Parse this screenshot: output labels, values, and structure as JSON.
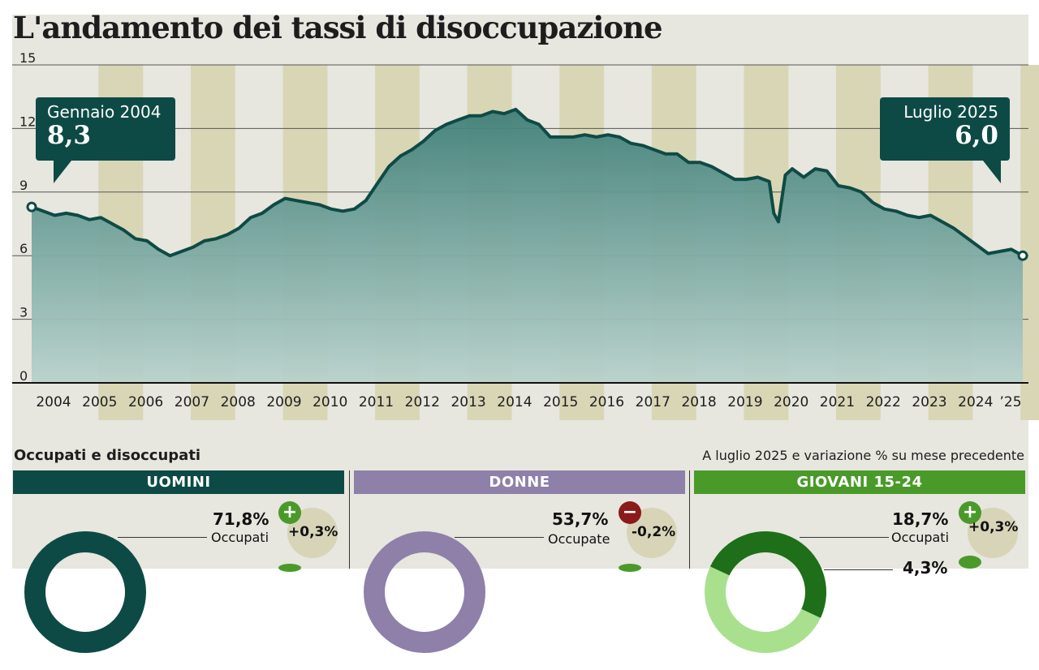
{
  "title": "L'andamento dei tassi di disoccupazione",
  "chart_data": {
    "type": "area",
    "ylim": [
      0,
      15
    ],
    "yticks": [
      "0",
      "3",
      "6",
      "9",
      "12",
      "15"
    ],
    "year_labels": [
      "2004",
      "2005",
      "2006",
      "2007",
      "2008",
      "2009",
      "2010",
      "2011",
      "2012",
      "2013",
      "2014",
      "2015",
      "2016",
      "2017",
      "2018",
      "2019",
      "2020",
      "2021",
      "2022",
      "2023",
      "2024",
      "’25"
    ],
    "grid": true,
    "series": [
      {
        "x": [
          2004.0,
          2004.25,
          2004.5,
          2004.75,
          2005.0,
          2005.25,
          2005.5,
          2005.75,
          2006.0,
          2006.25,
          2006.5,
          2006.75,
          2007.0,
          2007.25,
          2007.5,
          2007.75,
          2008.0,
          2008.25,
          2008.5,
          2008.75,
          2009.0,
          2009.25,
          2009.5,
          2009.75,
          2010.0,
          2010.25,
          2010.5,
          2010.75,
          2011.0,
          2011.25,
          2011.5,
          2011.75,
          2012.0,
          2012.25,
          2012.5,
          2012.75,
          2013.0,
          2013.25,
          2013.5,
          2013.75,
          2014.0,
          2014.25,
          2014.5,
          2014.75,
          2015.0,
          2015.25,
          2015.5,
          2015.75,
          2016.0,
          2016.25,
          2016.5,
          2016.75,
          2017.0,
          2017.25,
          2017.5,
          2017.75,
          2018.0,
          2018.25,
          2018.5,
          2018.75,
          2019.0,
          2019.25,
          2019.5,
          2019.75,
          2020.0,
          2020.1,
          2020.2,
          2020.35,
          2020.5,
          2020.75,
          2021.0,
          2021.25,
          2021.5,
          2021.75,
          2022.0,
          2022.25,
          2022.5,
          2022.75,
          2023.0,
          2023.25,
          2023.5,
          2023.75,
          2024.0,
          2024.25,
          2024.5,
          2024.75,
          2025.0,
          2025.25,
          2025.5
        ],
        "y": [
          8.3,
          8.1,
          7.9,
          8.0,
          7.9,
          7.7,
          7.8,
          7.5,
          7.2,
          6.8,
          6.7,
          6.3,
          6.0,
          6.2,
          6.4,
          6.7,
          6.8,
          7.0,
          7.3,
          7.8,
          8.0,
          8.4,
          8.7,
          8.6,
          8.5,
          8.4,
          8.2,
          8.1,
          8.2,
          8.6,
          9.4,
          10.2,
          10.7,
          11.0,
          11.4,
          11.9,
          12.2,
          12.4,
          12.6,
          12.6,
          12.8,
          12.7,
          12.9,
          12.4,
          12.2,
          11.6,
          11.6,
          11.6,
          11.7,
          11.6,
          11.7,
          11.6,
          11.3,
          11.2,
          11.0,
          10.8,
          10.8,
          10.4,
          10.4,
          10.2,
          9.9,
          9.6,
          9.6,
          9.7,
          9.5,
          8.0,
          7.6,
          9.8,
          10.1,
          9.7,
          10.1,
          10.0,
          9.3,
          9.2,
          9.0,
          8.5,
          8.2,
          8.1,
          7.9,
          7.8,
          7.9,
          7.6,
          7.3,
          6.9,
          6.5,
          6.1,
          6.2,
          6.3,
          6.0
        ]
      }
    ]
  },
  "callouts": {
    "start": {
      "label": "Gennaio 2004",
      "value": "8,3"
    },
    "end": {
      "label": "Luglio 2025",
      "value": "6,0"
    }
  },
  "section": {
    "title": "Occupati e disoccupati",
    "note": "A luglio 2025 e variazione % su mese precedente"
  },
  "panels": [
    {
      "header": "UOMINI",
      "color": "#0d4a45",
      "value": "71,8%",
      "label": "Occupati",
      "change": "+0,3%",
      "sign": "+",
      "sign_color": "#4a9a2a"
    },
    {
      "header": "DONNE",
      "color": "#8e80a8",
      "value": "53,7%",
      "label": "Occupate",
      "change": "-0,2%",
      "sign": "−",
      "sign_color": "#8b1a1a"
    },
    {
      "header": "GIOVANI 15-24",
      "color": "#4a9a2a",
      "value": "18,7%",
      "label": "Occupati",
      "change": "+0,3%",
      "sign": "+",
      "sign_color": "#4a9a2a",
      "value2": "4,3%"
    }
  ],
  "colors": {
    "line": "#0f4a45",
    "area_top": "#3f7f78",
    "area_bottom": "#b8d2cc",
    "band": "#d9d6b6",
    "background": "#e7e6df"
  }
}
